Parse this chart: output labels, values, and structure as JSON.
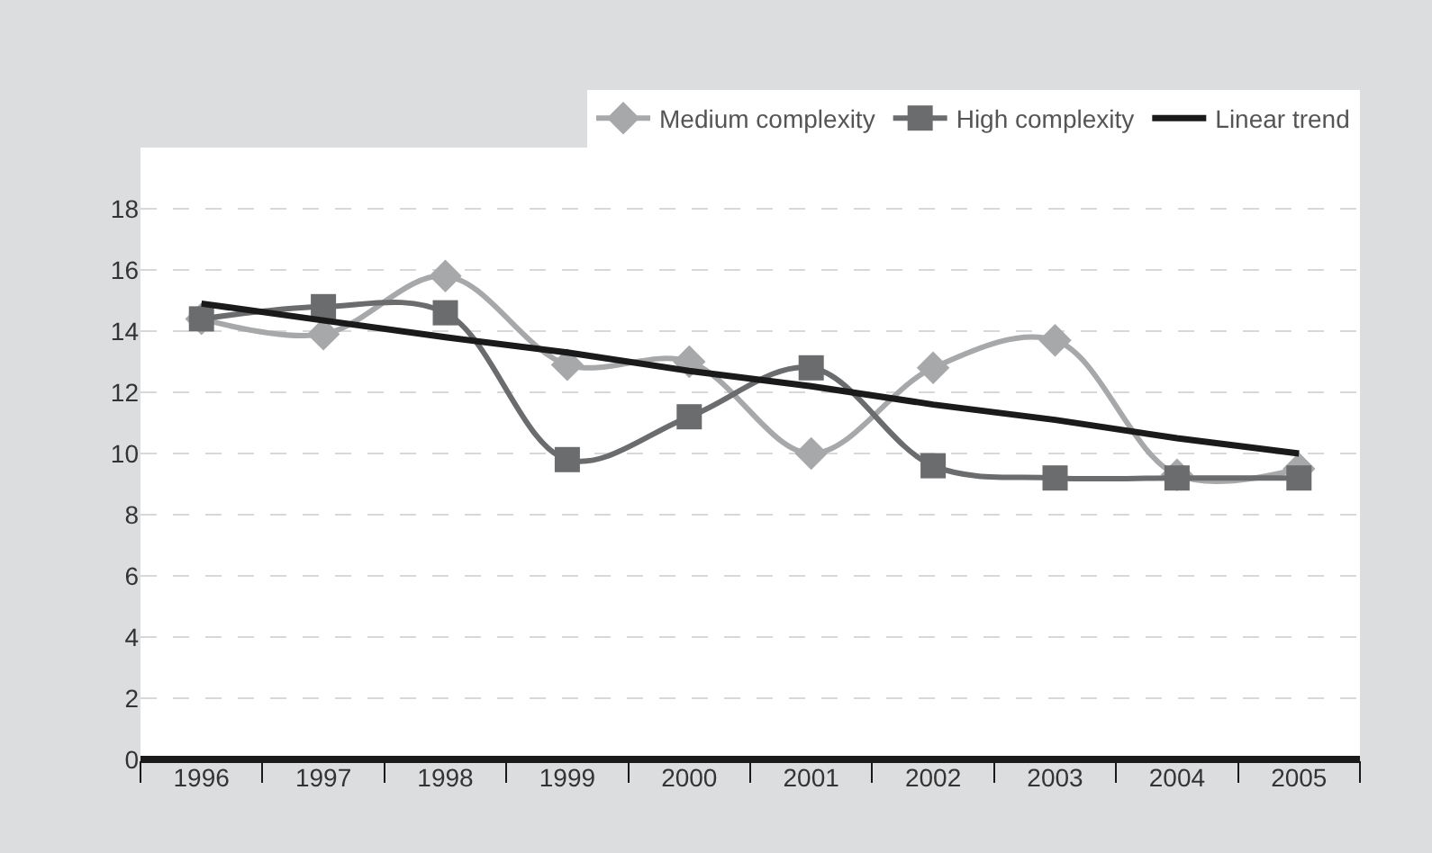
{
  "chart_data": {
    "type": "line",
    "categories": [
      "1996",
      "1997",
      "1998",
      "1999",
      "2000",
      "2001",
      "2002",
      "2003",
      "2004",
      "2005"
    ],
    "series": [
      {
        "name": "Medium complexity",
        "color": "#a7a8aa",
        "marker": "diamond",
        "values": [
          14.4,
          13.9,
          15.8,
          12.9,
          13.0,
          10.0,
          12.8,
          13.7,
          9.3,
          9.5
        ]
      },
      {
        "name": "High complexity",
        "color": "#6b6c6e",
        "marker": "square",
        "values": [
          14.4,
          14.8,
          14.6,
          9.8,
          11.2,
          12.8,
          9.6,
          9.2,
          9.2,
          9.2
        ]
      },
      {
        "name": "Linear trend",
        "color": "#1a1a1a",
        "marker": "none",
        "values": [
          14.9,
          14.35,
          13.8,
          13.3,
          12.7,
          12.2,
          11.6,
          11.1,
          10.5,
          10.0
        ]
      }
    ],
    "ylim": [
      0,
      20
    ],
    "yticks": [
      0,
      2,
      4,
      6,
      8,
      10,
      12,
      14,
      16,
      18
    ],
    "grid": "y",
    "legend": "top right"
  }
}
